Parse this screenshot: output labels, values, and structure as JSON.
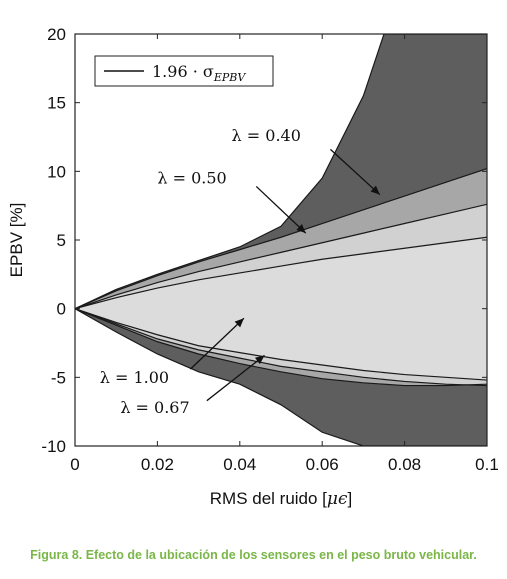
{
  "colors": {
    "band_dark": "#5e5e5e",
    "band_mid": "#a7a7a7",
    "band_light": "#d1d1d1",
    "band_lightest": "#dcdcdc",
    "caption": "#7ab648"
  },
  "caption": "Figura 8. Efecto de la ubicación de los sensores en el peso bruto vehicular.",
  "chart_data": {
    "type": "area",
    "xlabel_text": "RMS del ruido [",
    "xlabel_symbol": "μϵ",
    "xlabel_close": "]",
    "ylabel": "EPBV [%]",
    "xlim": [
      0,
      0.1
    ],
    "ylim": [
      -10,
      20
    ],
    "x_ticks": [
      0,
      0.02,
      0.04,
      0.06,
      0.08,
      0.1
    ],
    "x_tick_labels": [
      "0",
      "0.02",
      "0.04",
      "0.06",
      "0.08",
      "0.1"
    ],
    "y_ticks": [
      -10,
      -5,
      0,
      5,
      10,
      15,
      20
    ],
    "y_tick_labels": [
      "-10",
      "-5",
      "0",
      "5",
      "10",
      "15",
      "20"
    ],
    "grid": false,
    "legend_position": "top-left",
    "legend": {
      "coef": "1.96 · σ",
      "sub": "EPBV"
    },
    "series": [
      {
        "name": "λ = 0.40",
        "x": [
          0,
          0.01,
          0.02,
          0.03,
          0.04,
          0.05,
          0.06,
          0.07,
          0.075,
          0.1
        ],
        "upper": [
          0,
          1.4,
          2.5,
          3.5,
          4.5,
          6.0,
          9.5,
          15.5,
          20,
          20
        ],
        "lower": [
          0,
          -1.7,
          -3.3,
          -4.6,
          -5.5,
          -7.0,
          -9.0,
          -10,
          -10,
          -10
        ]
      },
      {
        "name": "λ = 0.50",
        "x": [
          0,
          0.01,
          0.02,
          0.03,
          0.04,
          0.05,
          0.06,
          0.07,
          0.08,
          0.09,
          0.1
        ],
        "upper": [
          0,
          1.3,
          2.4,
          3.4,
          4.3,
          5.2,
          6.2,
          7.2,
          8.2,
          9.2,
          10.2
        ],
        "lower": [
          0,
          -1.2,
          -2.4,
          -3.3,
          -4.0,
          -4.6,
          -5.1,
          -5.4,
          -5.6,
          -5.6,
          -5.5
        ]
      },
      {
        "name": "λ = 0.67",
        "x": [
          0,
          0.01,
          0.02,
          0.03,
          0.04,
          0.05,
          0.06,
          0.07,
          0.08,
          0.09,
          0.1
        ],
        "upper": [
          0,
          1.0,
          1.9,
          2.7,
          3.4,
          4.1,
          4.8,
          5.5,
          6.2,
          6.9,
          7.6
        ],
        "lower": [
          0,
          -1.1,
          -2.2,
          -3.0,
          -3.6,
          -4.2,
          -4.6,
          -5.0,
          -5.3,
          -5.5,
          -5.6
        ]
      },
      {
        "name": "λ = 1.00",
        "x": [
          0,
          0.01,
          0.02,
          0.03,
          0.04,
          0.05,
          0.06,
          0.07,
          0.08,
          0.09,
          0.1
        ],
        "upper": [
          0,
          0.8,
          1.5,
          2.1,
          2.6,
          3.1,
          3.6,
          4.0,
          4.4,
          4.8,
          5.2
        ],
        "lower": [
          0,
          -1.0,
          -1.9,
          -2.7,
          -3.2,
          -3.7,
          -4.1,
          -4.5,
          -4.8,
          -5.0,
          -5.2
        ]
      }
    ],
    "annotations": [
      {
        "label": "λ = 0.40",
        "tx": 0.038,
        "ty": 12.2,
        "ax": 0.062,
        "ay": 11.6,
        "bx": 0.074,
        "by": 8.3
      },
      {
        "label": "λ = 0.50",
        "tx": 0.02,
        "ty": 9.1,
        "ax": 0.044,
        "ay": 8.9,
        "bx": 0.056,
        "by": 5.5
      },
      {
        "label": "λ = 1.00",
        "tx": 0.006,
        "ty": -5.4,
        "ax": 0.028,
        "ay": -4.4,
        "bx": 0.041,
        "by": -0.7
      },
      {
        "label": "λ = 0.67",
        "tx": 0.011,
        "ty": -7.6,
        "ax": 0.032,
        "ay": -6.7,
        "bx": 0.046,
        "by": -3.4
      }
    ]
  }
}
